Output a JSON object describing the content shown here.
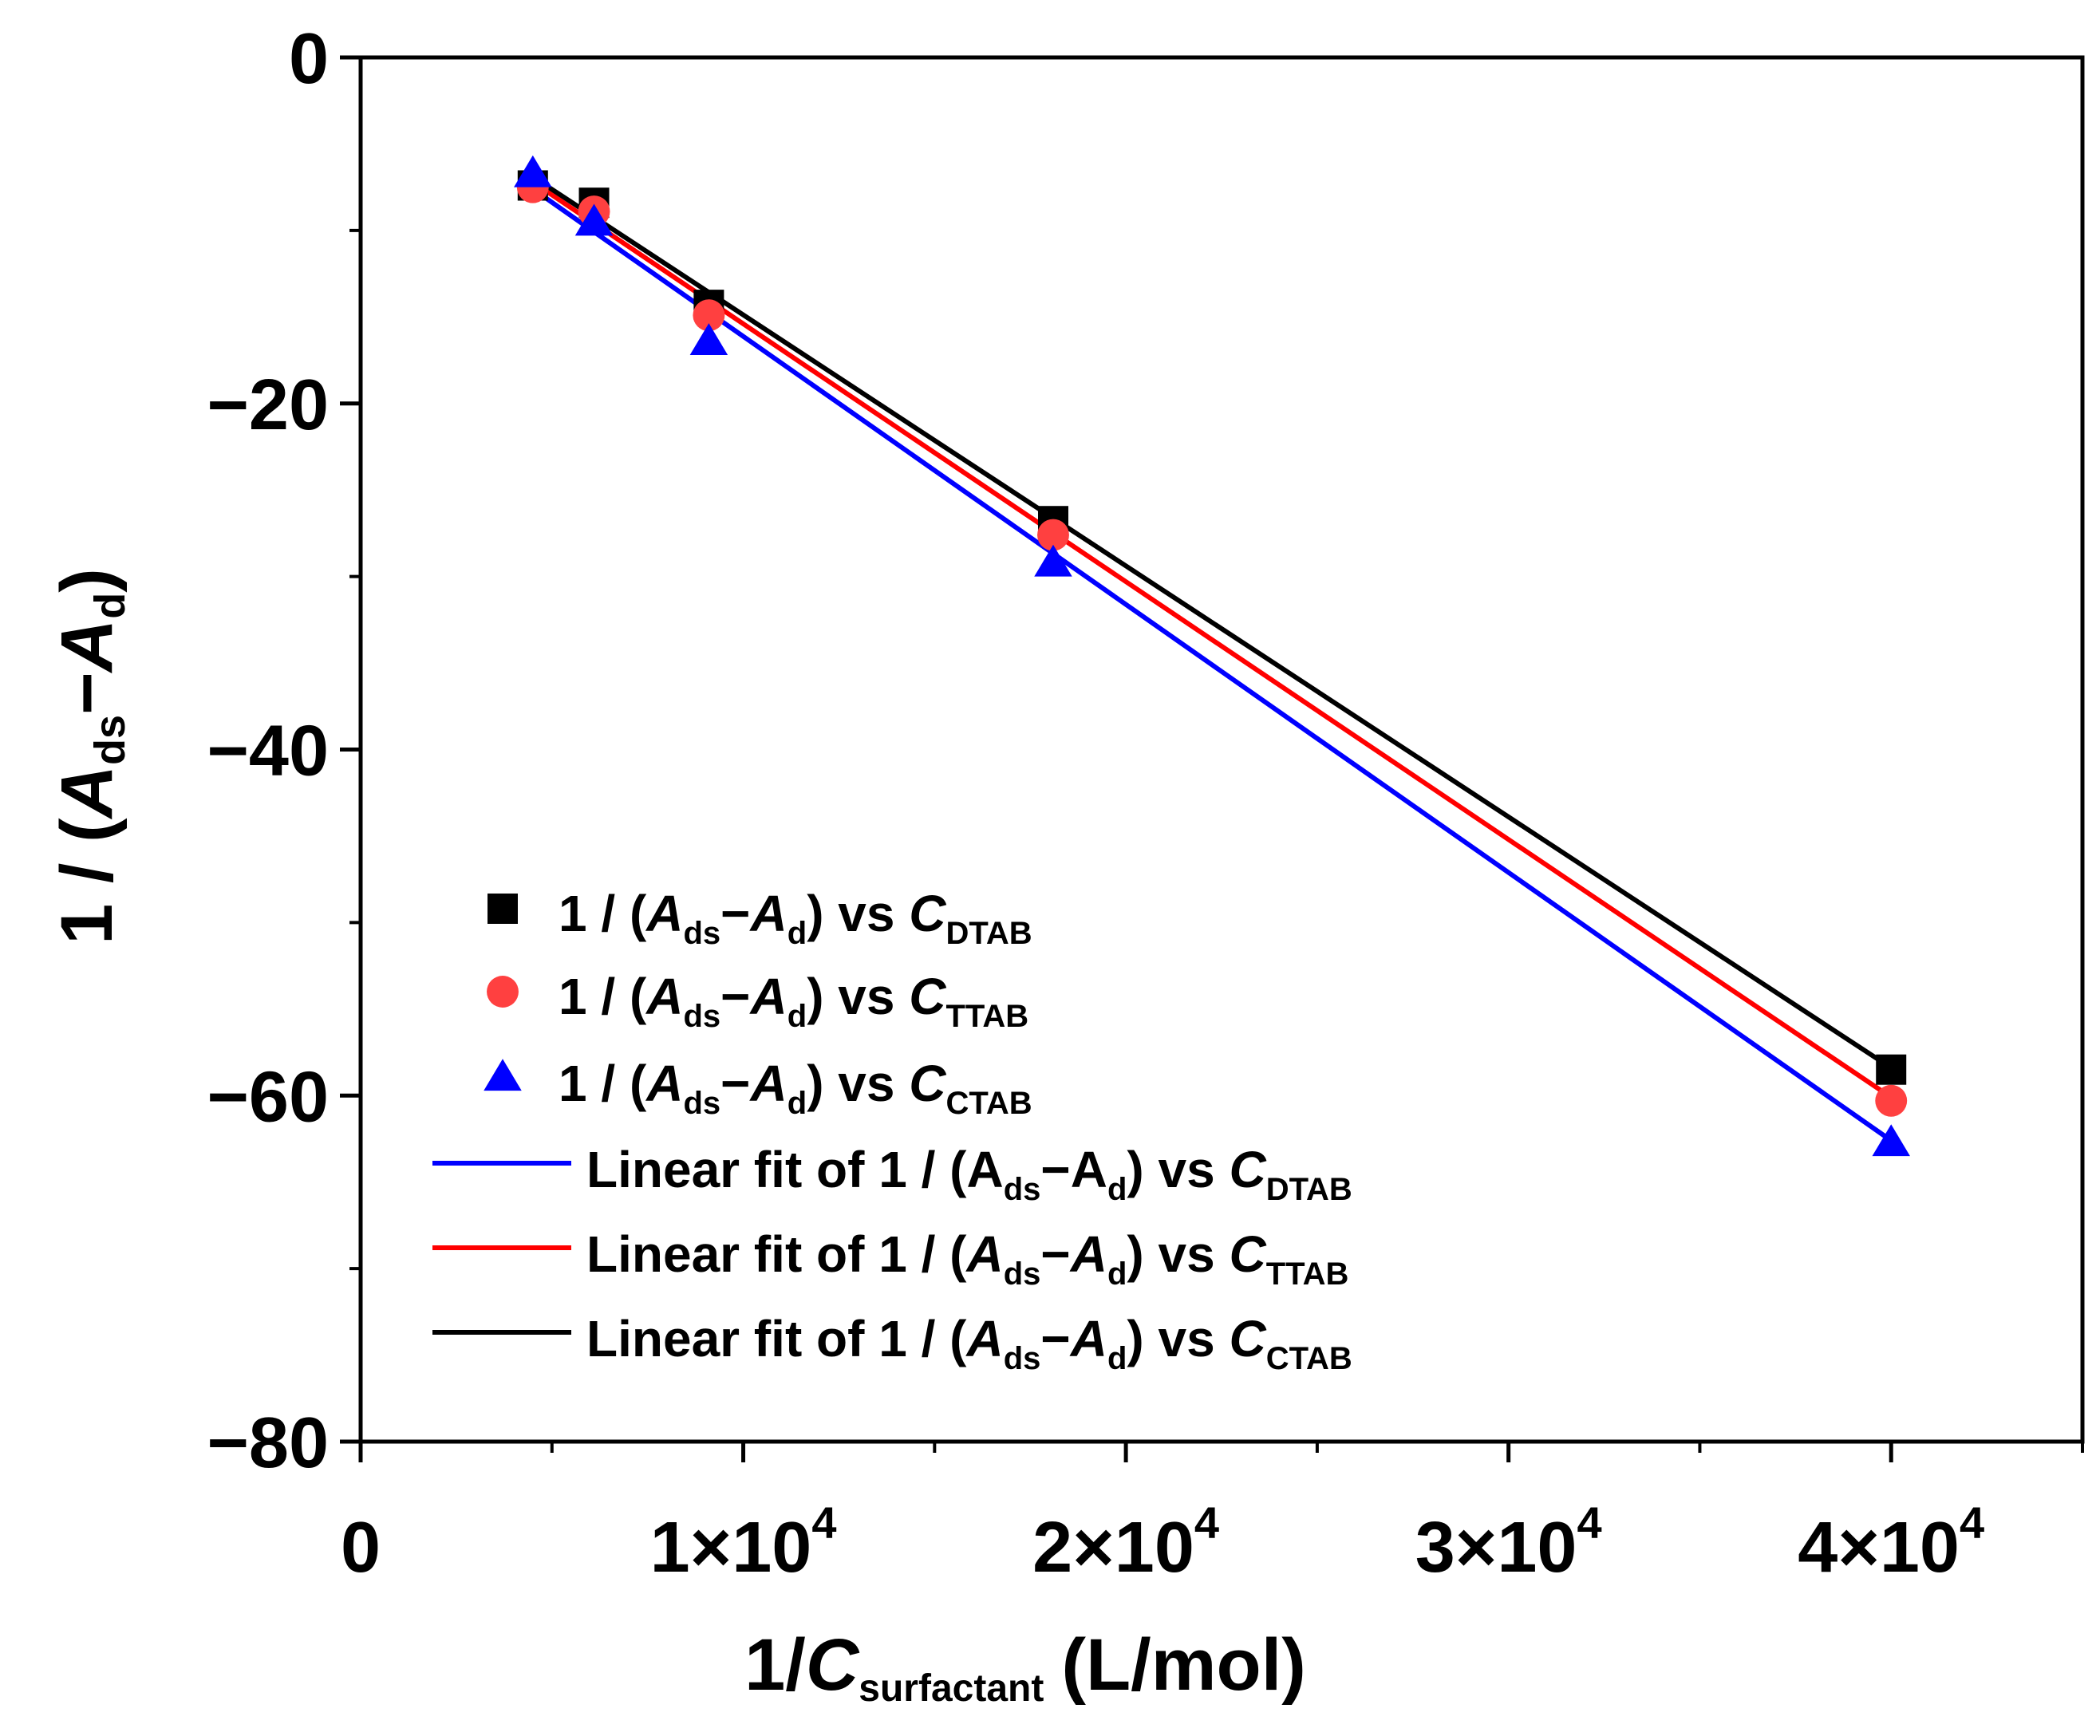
{
  "chart_data": {
    "type": "scatter",
    "title": "",
    "xlabel": {
      "prefix": "1/",
      "var": "C",
      "sub": "surfactant",
      "suffix": "(L/mol)"
    },
    "ylabel": {
      "prefix": "1 / (",
      "var1": "A",
      "sub1": "ds",
      "op": "−",
      "var2": "A",
      "sub2": "d",
      "suffix": ")"
    },
    "xlim": [
      0,
      45000
    ],
    "ylim": [
      -80,
      0
    ],
    "x_major_ticks": [
      0,
      10000,
      20000,
      30000,
      40000
    ],
    "x_tick_labels": [
      {
        "mant": "0",
        "exp": ""
      },
      {
        "mant": "1×10",
        "exp": "4"
      },
      {
        "mant": "2×10",
        "exp": "4"
      },
      {
        "mant": "3×10",
        "exp": "4"
      },
      {
        "mant": "4×10",
        "exp": "4"
      }
    ],
    "y_major_ticks": [
      0,
      -20,
      -40,
      -60,
      -80
    ],
    "y_tick_labels": [
      "0",
      "−20",
      "−40",
      "−60",
      "−80"
    ],
    "grid": false,
    "legend_position": "lower-left",
    "series": [
      {
        "name": {
          "text": "1 / (",
          "v1": "A",
          "s1": "ds",
          "op": "−",
          "v2": "A",
          "s2": "d",
          "tail": ") vs ",
          "v3": "C",
          "s3": "DTAB"
        },
        "kind": "scatter",
        "marker": "square",
        "color": "#000000",
        "x": [
          4500,
          6100,
          9100,
          18100,
          40000
        ],
        "y": [
          -7.4,
          -8.4,
          -14.3,
          -26.8,
          -58.5
        ]
      },
      {
        "name": {
          "text": "1 / (",
          "v1": "A",
          "s1": "ds",
          "op": "−",
          "v2": "A",
          "s2": "d",
          "tail": ") vs ",
          "v3": "C",
          "s3": "TTAB"
        },
        "kind": "scatter",
        "marker": "circle",
        "color": "#ff4040",
        "x": [
          4500,
          6100,
          9100,
          18100,
          40000
        ],
        "y": [
          -7.5,
          -8.9,
          -14.9,
          -27.6,
          -60.3
        ]
      },
      {
        "name": {
          "text": "1 / (",
          "v1": "A",
          "s1": "ds",
          "op": "−",
          "v2": "A",
          "s2": "d",
          "tail": ") vs ",
          "v3": "C",
          "s3": "CTAB"
        },
        "kind": "scatter",
        "marker": "triangle",
        "color": "#0000ff",
        "x": [
          4500,
          6100,
          9100,
          18100,
          40000
        ],
        "y": [
          -6.8,
          -9.6,
          -16.5,
          -29.3,
          -62.8
        ]
      },
      {
        "name": {
          "text": "Linear fit of 1 / (A",
          "v1": "",
          "s1": "ds",
          "op": "−A",
          "v2": "",
          "s2": "d",
          "tail": ") vs ",
          "v3": "C",
          "s3": "DTAB"
        },
        "kind": "line",
        "color": "#0000ff",
        "x": [
          4500,
          40000
        ],
        "y": [
          -7.6,
          -62.6
        ]
      },
      {
        "name": {
          "text": "Linear fit of 1 / (",
          "v1": "A",
          "s1": "ds",
          "op": "−",
          "v2": "A",
          "s2": "d",
          "tail": ") vs ",
          "v3": "C",
          "s3": "TTAB"
        },
        "kind": "line",
        "color": "#ff0000",
        "x": [
          4500,
          40000
        ],
        "y": [
          -7.2,
          -60.1
        ]
      },
      {
        "name": {
          "text": "Linear fit of 1 / (",
          "v1": "A",
          "s1": "ds",
          "op": "−",
          "v2": "A",
          "s2": "d",
          "tail": ") vs ",
          "v3": "C",
          "s3": "CTAB"
        },
        "kind": "line",
        "color": "#000000",
        "x": [
          4500,
          40000
        ],
        "y": [
          -6.9,
          -58.4
        ]
      }
    ]
  }
}
